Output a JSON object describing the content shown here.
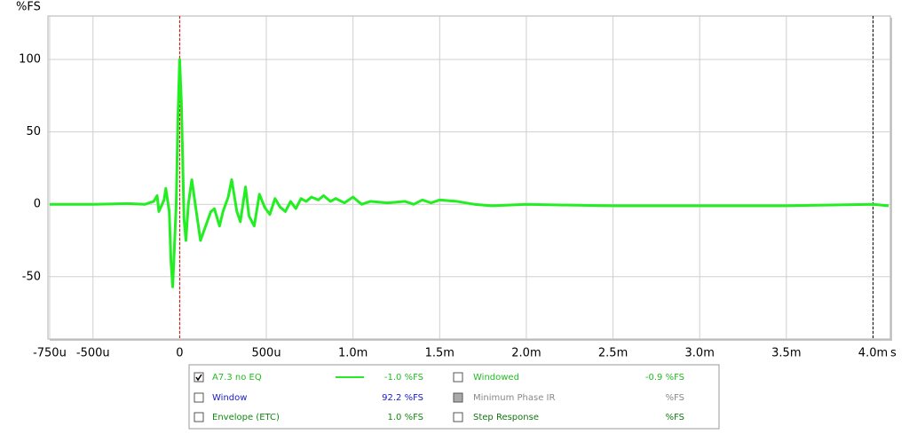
{
  "chart_data": {
    "type": "line",
    "y_label": "%FS",
    "x_unit": "s",
    "x": [
      -0.00075,
      -0.0005,
      -0.0003,
      -0.0002,
      -0.00015,
      -0.00013,
      -0.00012,
      -9e-05,
      -8e-05,
      -6e-05,
      -5e-05,
      -4e-05,
      -2e-05,
      -1e-05,
      0,
      1e-05,
      2.5e-05,
      3.6e-05,
      5e-05,
      7e-05,
      9e-05,
      0.00012,
      0.00015,
      0.00018,
      0.0002,
      0.00023,
      0.00025,
      0.00028,
      0.0003,
      0.00033,
      0.00035,
      0.00038,
      0.0004,
      0.00043,
      0.00046,
      0.00049,
      0.00052,
      0.00055,
      0.00058,
      0.00061,
      0.00064,
      0.00067,
      0.0007,
      0.00073,
      0.00076,
      0.0008,
      0.00083,
      0.00087,
      0.0009,
      0.00095,
      0.001,
      0.00105,
      0.0011,
      0.0012,
      0.0013,
      0.00135,
      0.0014,
      0.00145,
      0.0015,
      0.0016,
      0.0017,
      0.0018,
      0.002,
      0.0022,
      0.0025,
      0.003,
      0.0035,
      0.004,
      0.00409
    ],
    "series": [
      {
        "name": "A7.3 no EQ",
        "color": "#22ee22",
        "values": [
          0,
          0,
          0.5,
          0,
          2,
          6,
          -5,
          3,
          11,
          -5,
          -40,
          -57,
          0,
          60,
          100,
          70,
          -10,
          -25,
          0,
          17,
          0,
          -25,
          -15,
          -5,
          -3,
          -15,
          -5,
          5,
          17,
          -5,
          -12,
          12,
          -8,
          -15,
          7,
          -2,
          -7,
          4,
          -2,
          -5,
          2,
          -3,
          4,
          2,
          5,
          3,
          6,
          2,
          4,
          1,
          5,
          0,
          2,
          1,
          2,
          0,
          3,
          1,
          3,
          2,
          0,
          -1,
          0,
          -0.5,
          -1,
          -1,
          -1,
          0,
          -1
        ]
      }
    ],
    "xlim": [
      -0.00076,
      0.0041
    ],
    "ylim": [
      -93,
      130
    ],
    "xticks": [
      {
        "value": -0.00075,
        "label": "-750u"
      },
      {
        "value": -0.0005,
        "label": "-500u"
      },
      0,
      {
        "value": 0.0005,
        "label": "500u"
      },
      {
        "value": 0.001,
        "label": "1.0m"
      },
      {
        "value": 0.0015,
        "label": "1.5m"
      },
      {
        "value": 0.002,
        "label": "2.0m"
      },
      {
        "value": 0.0025,
        "label": "2.5m"
      },
      {
        "value": 0.003,
        "label": "3.0m"
      },
      {
        "value": 0.0035,
        "label": "3.5m"
      },
      {
        "value": 0.004,
        "label": "4.0m"
      }
    ],
    "yticks": [
      -50,
      0,
      50,
      100
    ],
    "grid": true,
    "markers": [
      {
        "x": 0,
        "color": "#dd0000"
      },
      {
        "x": 0.004,
        "color": "#000000"
      }
    ]
  },
  "panel": {
    "rows": [
      [
        {
          "label": "A7.3 no EQ",
          "value": "-1.0 %FS",
          "color": "#22bb22",
          "checked": true,
          "enabled": true,
          "series": 0
        },
        {
          "label": "Windowed",
          "value": "-0.9 %FS",
          "color": "#22bb22",
          "checked": false,
          "enabled": true
        }
      ],
      [
        {
          "label": "Window",
          "value": "92.2 %FS",
          "color": "#1a1acc",
          "checked": false,
          "enabled": true
        },
        {
          "label": "Minimum Phase IR",
          "value": "%FS",
          "color": "#888888",
          "checked": false,
          "enabled": false
        }
      ],
      [
        {
          "label": "Envelope (ETC)",
          "value": "1.0 %FS",
          "color": "#118811",
          "checked": false,
          "enabled": true
        },
        {
          "label": "Step Response",
          "value": "%FS",
          "color": "#117711",
          "checked": false,
          "enabled": true
        }
      ]
    ]
  }
}
